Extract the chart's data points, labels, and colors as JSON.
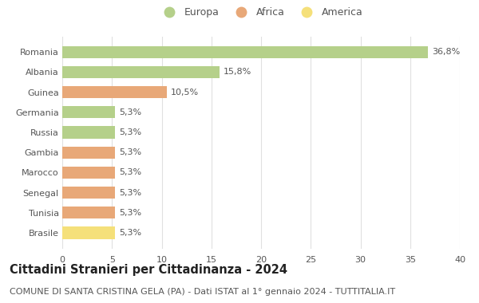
{
  "categories": [
    "Brasile",
    "Tunisia",
    "Senegal",
    "Marocco",
    "Gambia",
    "Russia",
    "Germania",
    "Guinea",
    "Albania",
    "Romania"
  ],
  "values": [
    5.3,
    5.3,
    5.3,
    5.3,
    5.3,
    5.3,
    5.3,
    10.5,
    15.8,
    36.8
  ],
  "labels": [
    "5,3%",
    "5,3%",
    "5,3%",
    "5,3%",
    "5,3%",
    "5,3%",
    "5,3%",
    "10,5%",
    "15,8%",
    "36,8%"
  ],
  "colors": [
    "#f5e07a",
    "#e8a878",
    "#e8a878",
    "#e8a878",
    "#e8a878",
    "#b5d08a",
    "#b5d08a",
    "#e8a878",
    "#b5d08a",
    "#b5d08a"
  ],
  "legend": [
    {
      "label": "Europa",
      "color": "#b5d08a"
    },
    {
      "label": "Africa",
      "color": "#e8a878"
    },
    {
      "label": "America",
      "color": "#f5e07a"
    }
  ],
  "title": "Cittadini Stranieri per Cittadinanza - 2024",
  "subtitle": "COMUNE DI SANTA CRISTINA GELA (PA) - Dati ISTAT al 1° gennaio 2024 - TUTTITALIA.IT",
  "xlim": [
    0,
    40
  ],
  "xticks": [
    0,
    5,
    10,
    15,
    20,
    25,
    30,
    35,
    40
  ],
  "background_color": "#ffffff",
  "grid_color": "#e0e0e0",
  "bar_height": 0.6,
  "title_fontsize": 10.5,
  "subtitle_fontsize": 8,
  "label_fontsize": 8,
  "tick_fontsize": 8,
  "legend_fontsize": 9,
  "text_color": "#555555",
  "title_color": "#222222"
}
